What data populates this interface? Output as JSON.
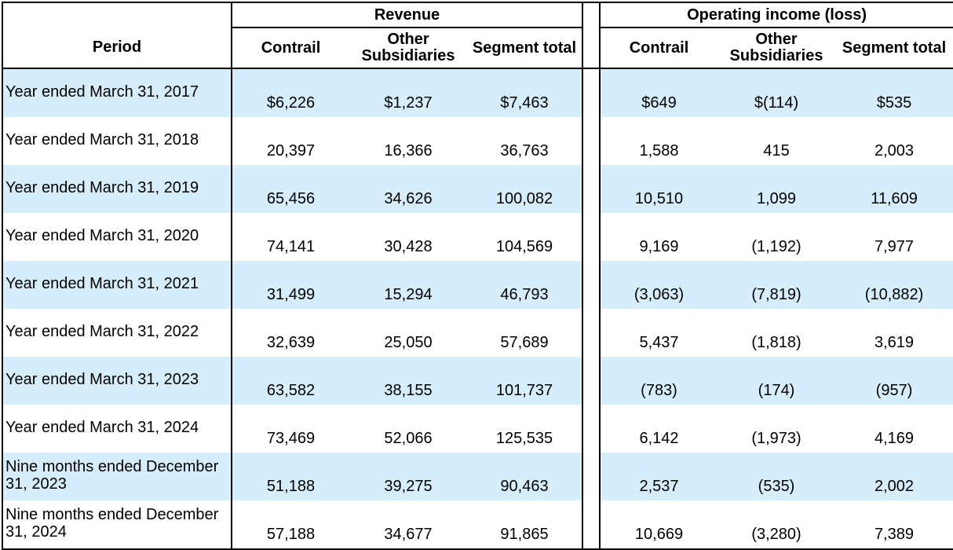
{
  "table": {
    "groups": {
      "revenue": "Revenue",
      "operating_income": "Operating income (loss)"
    },
    "headers": {
      "period": "Period",
      "rev_contrail": "Contrail",
      "rev_other": "Other Subsidiaries",
      "rev_total": "Segment total",
      "op_contrail": "Contrail",
      "op_other": "Other Subsidiaries",
      "op_total": "Segment total"
    },
    "rows": [
      {
        "period": "Year ended March 31, 2017",
        "rev_contrail": "$6,226",
        "rev_other": "$1,237",
        "rev_total": "$7,463",
        "op_contrail": "$649",
        "op_other": "$(114)",
        "op_total": "$535"
      },
      {
        "period": "Year ended March 31, 2018",
        "rev_contrail": "20,397",
        "rev_other": "16,366",
        "rev_total": "36,763",
        "op_contrail": "1,588",
        "op_other": "415",
        "op_total": "2,003"
      },
      {
        "period": "Year ended March 31, 2019",
        "rev_contrail": "65,456",
        "rev_other": "34,626",
        "rev_total": "100,082",
        "op_contrail": "10,510",
        "op_other": "1,099",
        "op_total": "11,609"
      },
      {
        "period": "Year ended March 31, 2020",
        "rev_contrail": "74,141",
        "rev_other": "30,428",
        "rev_total": "104,569",
        "op_contrail": "9,169",
        "op_other": "(1,192)",
        "op_total": "7,977"
      },
      {
        "period": "Year ended March 31, 2021",
        "rev_contrail": "31,499",
        "rev_other": "15,294",
        "rev_total": "46,793",
        "op_contrail": "(3,063)",
        "op_other": "(7,819)",
        "op_total": "(10,882)"
      },
      {
        "period": "Year ended March 31, 2022",
        "rev_contrail": "32,639",
        "rev_other": "25,050",
        "rev_total": "57,689",
        "op_contrail": "5,437",
        "op_other": "(1,818)",
        "op_total": "3,619"
      },
      {
        "period": "Year ended March 31, 2023",
        "rev_contrail": "63,582",
        "rev_other": "38,155",
        "rev_total": "101,737",
        "op_contrail": "(783)",
        "op_other": "(174)",
        "op_total": "(957)"
      },
      {
        "period": "Year ended March 31, 2024",
        "rev_contrail": "73,469",
        "rev_other": "52,066",
        "rev_total": "125,535",
        "op_contrail": "6,142",
        "op_other": "(1,973)",
        "op_total": "4,169"
      },
      {
        "period": "Nine months ended December 31, 2023",
        "rev_contrail": "51,188",
        "rev_other": "39,275",
        "rev_total": "90,463",
        "op_contrail": "2,537",
        "op_other": "(535)",
        "op_total": "2,002"
      },
      {
        "period": "Nine months ended December 31, 2024",
        "rev_contrail": "57,188",
        "rev_other": "34,677",
        "rev_total": "91,865",
        "op_contrail": "10,669",
        "op_other": "(3,280)",
        "op_total": "7,389"
      }
    ],
    "row_shading": {
      "shaded": "#d6eefb",
      "plain": "#ffffff"
    }
  }
}
